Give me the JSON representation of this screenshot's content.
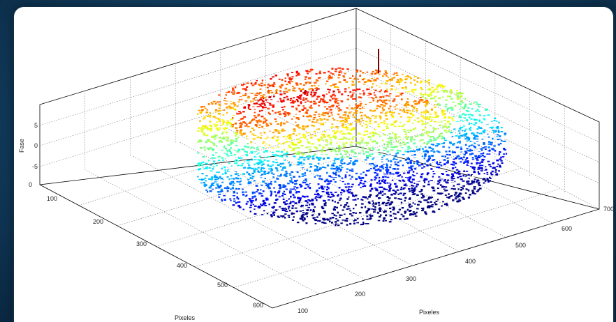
{
  "chart_data": {
    "type": "surface3d",
    "title": "",
    "xlabel": "Pixeles",
    "ylabel": "Pixeles",
    "zlabel": "Fase",
    "x_ticks": [
      "100",
      "200",
      "300",
      "400",
      "500",
      "600",
      "700"
    ],
    "y_ticks": [
      "100",
      "200",
      "300",
      "400",
      "500",
      "600"
    ],
    "z_ticks": [
      "-5",
      "0",
      "5"
    ],
    "z_extra_tick": "0",
    "x_range": [
      0,
      700
    ],
    "y_range": [
      0,
      600
    ],
    "z_range": [
      -7,
      7
    ],
    "grid": true,
    "colormap": "jet",
    "surface": {
      "description": "wrapped-phase blob over pixel grid",
      "x_extent": [
        110,
        640
      ],
      "y_extent": [
        40,
        560
      ],
      "z_min": -6,
      "z_max": 6,
      "spike": {
        "x": 250,
        "y": 60,
        "z": 7
      }
    }
  }
}
